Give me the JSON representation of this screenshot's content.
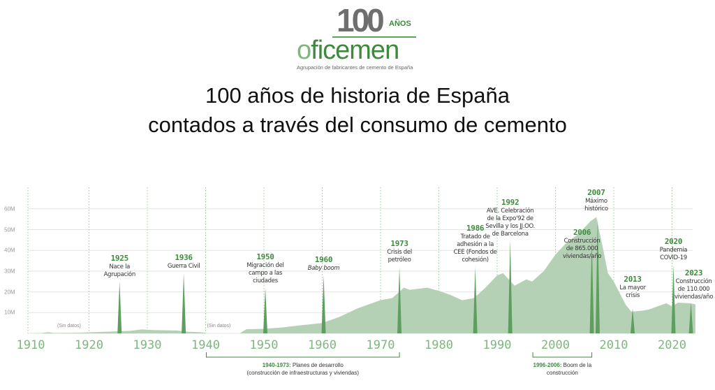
{
  "logo": {
    "number": "100",
    "anos": "AÑOS",
    "name_o": "o",
    "name_rest": "ficemen",
    "subtitle": "Agrupación de fabricantes de cemento de España"
  },
  "title_line1": "100 años de historia de España",
  "title_line2": "contados a través del consumo de cemento",
  "chart_data": {
    "type": "area",
    "title": "100 años de historia de España contados a través del consumo de cemento",
    "xlim": [
      1910,
      2024
    ],
    "ylim": [
      0,
      65
    ],
    "x_ticks": [
      "1910",
      "1920",
      "1930",
      "1940",
      "1950",
      "1960",
      "1970",
      "1980",
      "1990",
      "2000",
      "2010",
      "2020"
    ],
    "y_ticks": [
      {
        "v": 10,
        "label": "10M"
      },
      {
        "v": 20,
        "label": "20M"
      },
      {
        "v": 30,
        "label": "30M"
      },
      {
        "v": 40,
        "label": "40M"
      },
      {
        "v": 50,
        "label": "50M"
      },
      {
        "v": 60,
        "label": "60M"
      }
    ],
    "no_data_label": "(Sin datos)",
    "no_data_ranges": [
      [
        1910,
        1920
      ],
      [
        1940,
        1946
      ]
    ],
    "series": [
      [
        [
          1910,
          0
        ],
        [
          1912,
          0.2
        ],
        [
          1913,
          0.6
        ],
        [
          1914,
          0.2
        ],
        [
          1918,
          0.3
        ],
        [
          1920,
          0.5
        ],
        [
          1924,
          0.9
        ],
        [
          1927,
          1.2
        ],
        [
          1929,
          1.9
        ],
        [
          1931,
          1.6
        ],
        [
          1935,
          1.4
        ],
        [
          1937,
          0.8
        ],
        [
          1939,
          0.6
        ],
        [
          1940,
          0.3
        ]
      ],
      [
        [
          1946,
          0.3
        ],
        [
          1947,
          2
        ],
        [
          1950,
          2.2
        ],
        [
          1953,
          2.8
        ],
        [
          1956,
          3.8
        ],
        [
          1960,
          5
        ],
        [
          1963,
          8
        ],
        [
          1966,
          12
        ],
        [
          1968,
          14
        ],
        [
          1970,
          16
        ],
        [
          1972,
          17
        ],
        [
          1974,
          22
        ],
        [
          1975,
          21
        ],
        [
          1978,
          22
        ],
        [
          1980,
          20.5
        ],
        [
          1982,
          18.5
        ],
        [
          1984,
          16
        ],
        [
          1986,
          17
        ],
        [
          1988,
          22
        ],
        [
          1990,
          28
        ],
        [
          1991,
          29
        ],
        [
          1993,
          23
        ],
        [
          1995,
          26
        ],
        [
          1996,
          25
        ],
        [
          1998,
          30
        ],
        [
          2000,
          38
        ],
        [
          2002,
          44
        ],
        [
          2004,
          48
        ],
        [
          2006,
          54
        ],
        [
          2007,
          56
        ],
        [
          2008,
          43
        ],
        [
          2009,
          29
        ],
        [
          2010,
          25
        ],
        [
          2012,
          14
        ],
        [
          2013,
          10.5
        ],
        [
          2015,
          11
        ],
        [
          2016,
          11.5
        ],
        [
          2018,
          13.5
        ],
        [
          2019,
          14.5
        ],
        [
          2020,
          13
        ],
        [
          2021,
          14.8
        ],
        [
          2023,
          14.5
        ],
        [
          2024,
          14
        ]
      ]
    ],
    "events": [
      {
        "year": "1925",
        "text": [
          "Nace la",
          "Agrupación"
        ],
        "top": 25
      },
      {
        "year": "1936",
        "text": [
          "Guerra Civil"
        ],
        "top": 29
      },
      {
        "year": "1950",
        "text": [
          "Migración del",
          "campo a las",
          "ciudades"
        ],
        "top": 22
      },
      {
        "year": "1960",
        "text": [
          "Baby boom"
        ],
        "top": 28
      },
      {
        "year": "1973",
        "text": [
          "Crisis del",
          "petróleo"
        ],
        "top": 32
      },
      {
        "year": "1986",
        "text": [
          "Tratado de",
          "adhesión a la",
          "CEE (Fondos de",
          "cohesión)"
        ],
        "top": 32
      },
      {
        "year": "1992",
        "text": [
          "AVE. Celebración",
          "de la Expo'92 de",
          "Sevilla y los JJ.OO.",
          "de Barcelona"
        ],
        "top": 45
      },
      {
        "year": "2006",
        "text": [
          "Construcción",
          "de 865.000",
          "viviendas/año"
        ],
        "top": 45
      },
      {
        "year": "2007",
        "text": [
          "Máximo",
          "histórico"
        ],
        "top": 56
      },
      {
        "year": "2013",
        "text": [
          "La mayor",
          "crisis"
        ],
        "top": 12
      },
      {
        "year": "2020",
        "text": [
          "Pandemia",
          "COVID-19"
        ],
        "top": 33
      },
      {
        "year": "2023",
        "text": [
          "Construcción",
          "de 110.000",
          "viviendas/año"
        ],
        "top": 15
      }
    ],
    "periods": [
      {
        "range": [
          1940,
          1973
        ],
        "label_bold": "1940-1973:",
        "label": " Planes de desarrollo",
        "line2": "(construcción de infraestructuras y viviendas)"
      },
      {
        "range": [
          1996,
          2006
        ],
        "label_bold": "1996-2006:",
        "label": " Boom de la",
        "line2": "construcción"
      }
    ]
  },
  "colors": {
    "area": "#b5d1b5",
    "spike": "#5e9e5e",
    "accent": "#3d8a3d",
    "tick": "#7cb87c"
  }
}
